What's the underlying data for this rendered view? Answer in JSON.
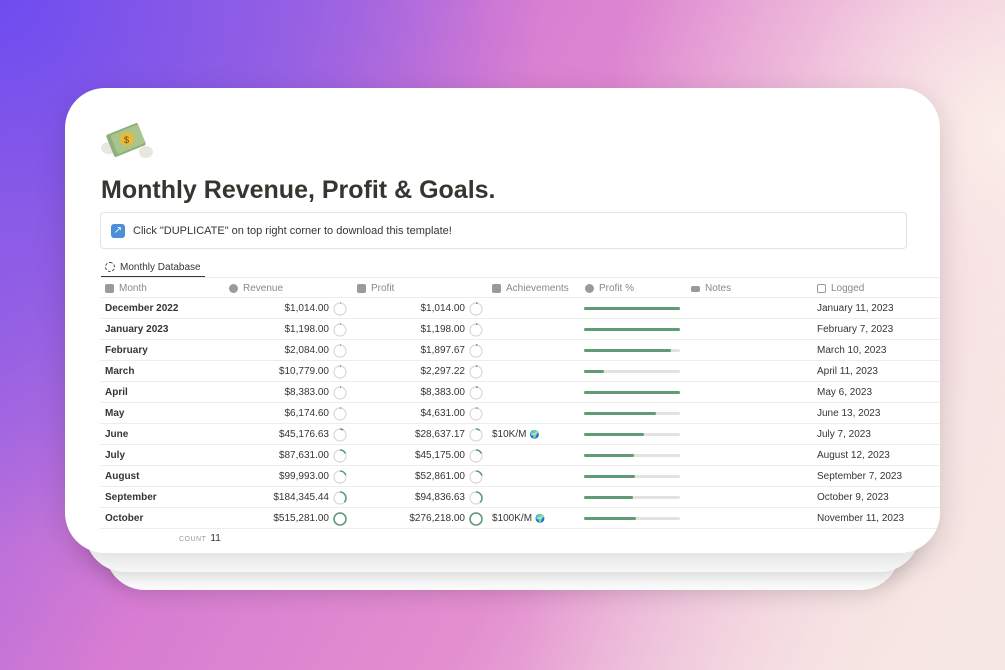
{
  "page": {
    "title": "Monthly Revenue, Profit & Goals.",
    "callout": "Click \"DUPLICATE\" on top right corner to download this template!",
    "view_tab": "Monthly Database",
    "count_label": "COUNT",
    "count": "11"
  },
  "columns": [
    "Month",
    "Revenue",
    "Profit",
    "Achievements",
    "Profit %",
    "Notes",
    "Logged"
  ],
  "rows": [
    {
      "month": "December 2022",
      "revenue": "$1,014.00",
      "profit": "$1,014.00",
      "achievement": "",
      "profit_pct": 1.0,
      "rev_progress": 0.02,
      "profit_progress": 0.04,
      "logged": "January 11, 2023"
    },
    {
      "month": "January 2023",
      "revenue": "$1,198.00",
      "profit": "$1,198.00",
      "achievement": "",
      "profit_pct": 1.0,
      "rev_progress": 0.02,
      "profit_progress": 0.04,
      "logged": "February 7, 2023"
    },
    {
      "month": "February",
      "revenue": "$2,084.00",
      "profit": "$1,897.67",
      "achievement": "",
      "profit_pct": 0.91,
      "rev_progress": 0.02,
      "profit_progress": 0.04,
      "logged": "March 10, 2023"
    },
    {
      "month": "March",
      "revenue": "$10,779.00",
      "profit": "$2,297.22",
      "achievement": "",
      "profit_pct": 0.21,
      "rev_progress": 0.03,
      "profit_progress": 0.04,
      "logged": "April 11, 2023"
    },
    {
      "month": "April",
      "revenue": "$8,383.00",
      "profit": "$8,383.00",
      "achievement": "",
      "profit_pct": 1.0,
      "rev_progress": 0.03,
      "profit_progress": 0.05,
      "logged": "May 6, 2023"
    },
    {
      "month": "May",
      "revenue": "$6,174.60",
      "profit": "$4,631.00",
      "achievement": "",
      "profit_pct": 0.75,
      "rev_progress": 0.03,
      "profit_progress": 0.04,
      "logged": "June 13, 2023"
    },
    {
      "month": "June",
      "revenue": "$45,176.63",
      "profit": "$28,637.17",
      "achievement": "$10K/M",
      "profit_pct": 0.63,
      "rev_progress": 0.09,
      "profit_progress": 0.11,
      "logged": "July 7, 2023"
    },
    {
      "month": "July",
      "revenue": "$87,631.00",
      "profit": "$45,175.00",
      "achievement": "",
      "profit_pct": 0.52,
      "rev_progress": 0.18,
      "profit_progress": 0.18,
      "logged": "August 12, 2023"
    },
    {
      "month": "August",
      "revenue": "$99,993.00",
      "profit": "$52,861.00",
      "achievement": "",
      "profit_pct": 0.53,
      "rev_progress": 0.2,
      "profit_progress": 0.21,
      "logged": "September 7, 2023"
    },
    {
      "month": "September",
      "revenue": "$184,345.44",
      "profit": "$94,836.63",
      "achievement": "",
      "profit_pct": 0.51,
      "rev_progress": 0.37,
      "profit_progress": 0.38,
      "logged": "October 9, 2023"
    },
    {
      "month": "October",
      "revenue": "$515,281.00",
      "profit": "$276,218.00",
      "achievement": "$100K/M",
      "profit_pct": 0.54,
      "rev_progress": 1.0,
      "profit_progress": 1.0,
      "logged": "November 11, 2023"
    }
  ],
  "colors": {
    "accent": "#5f9b74",
    "track": "#e3e2e0"
  }
}
